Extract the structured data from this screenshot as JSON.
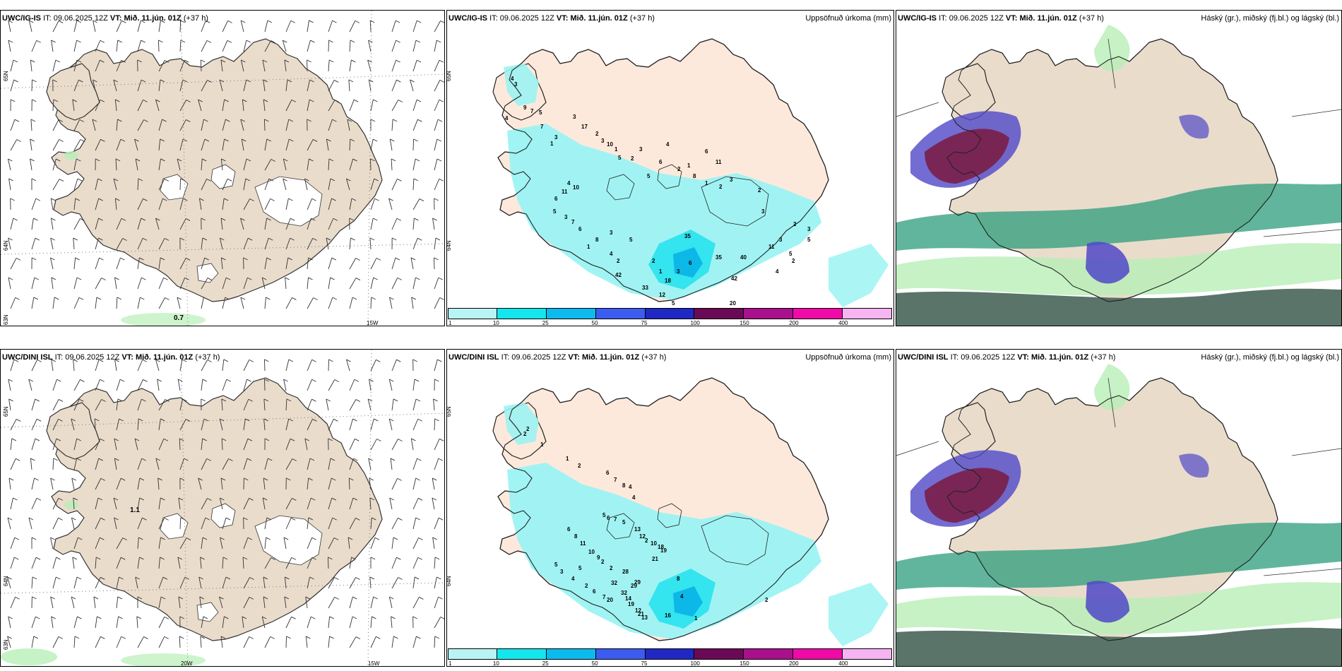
{
  "panels": {
    "top": {
      "wind": {
        "model": "UWC/IG-IS",
        "it_label": "IT:",
        "it": "09.06.2025 12Z",
        "vt_label": "VT:",
        "vt": "Mið. 11.jún. 01Z",
        "lead": "(+37 h)",
        "lat_labels": [
          "65N",
          "64N",
          "63N"
        ],
        "lon_labels": [
          "15W"
        ],
        "max_value": "0.7"
      },
      "precip": {
        "model": "UWC/IG-IS",
        "it_label": "IT:",
        "it": "09.06.2025 12Z",
        "vt_label": "VT:",
        "vt": "Mið. 11.jún. 01Z",
        "lead": "(+37 h)",
        "right_title": "Uppsöfnuð úrkoma (mm)",
        "lat_labels": [
          "65N",
          "64N"
        ],
        "values": [
          "4",
          "3",
          "9",
          "7",
          "5",
          "4",
          "7",
          "3",
          "1",
          "3",
          "17",
          "2",
          "3",
          "1",
          "5",
          "10",
          "2",
          "3",
          "5",
          "4",
          "2",
          "6",
          "1",
          "6",
          "11",
          "8",
          "1",
          "2",
          "3",
          "4",
          "10",
          "11",
          "6",
          "5",
          "3",
          "7",
          "6",
          "8",
          "3",
          "5",
          "2",
          "1",
          "4",
          "2",
          "6",
          "1",
          "3",
          "18",
          "35",
          "35",
          "42",
          "33",
          "12",
          "5",
          "20",
          "17",
          "42",
          "40",
          "2",
          "3",
          "11",
          "3",
          "2",
          "3",
          "5",
          "2",
          "4",
          "5"
        ]
      },
      "cloud": {
        "model": "UWC/IG-IS",
        "it_label": "IT:",
        "it": "09.06.2025 12Z",
        "vt_label": "VT:",
        "vt": "Mið. 11.jún. 01Z",
        "lead": "(+37 h)",
        "right_title": "Háský (gr.), miðský (fj.bl.) og lágský (bl.)"
      }
    },
    "bottom": {
      "wind": {
        "model": "UWC/DINI ISL",
        "it_label": "IT:",
        "it": "09.06.2025 12Z",
        "vt_label": "VT:",
        "vt": "Mið. 11.jún. 01Z",
        "lead": "(+37 h)",
        "lat_labels": [
          "65N",
          "64N",
          "63N"
        ],
        "lon_labels": [
          "20W",
          "15W"
        ],
        "max_value": "1.1"
      },
      "precip": {
        "model": "UWC/DINI ISL",
        "it_label": "IT:",
        "it": "09.06.2025 12Z",
        "vt_label": "VT:",
        "vt": "Mið. 11.jún. 01Z",
        "lead": "(+37 h)",
        "right_title": "Uppsöfnuð úrkoma (mm)",
        "lat_labels": [
          "65N",
          "64N"
        ],
        "values": [
          "2",
          "2",
          "1",
          "1",
          "2",
          "6",
          "7",
          "8",
          "4",
          "4",
          "5",
          "6",
          "7",
          "5",
          "13",
          "12",
          "2",
          "10",
          "18",
          "19",
          "21",
          "28",
          "32",
          "29",
          "32",
          "14",
          "19",
          "12",
          "21",
          "13",
          "16",
          "20",
          "29",
          "6",
          "8",
          "11",
          "10",
          "9",
          "2",
          "2",
          "5",
          "5",
          "3",
          "4",
          "2",
          "6",
          "7",
          "8",
          "4",
          "1",
          "2"
        ]
      },
      "cloud": {
        "model": "UWC/DINI ISL",
        "it_label": "IT:",
        "it": "09.06.2025 12Z",
        "vt_label": "VT:",
        "vt": "Mið. 11.jún. 01Z",
        "lead": "(+37 h)",
        "right_title": "Háský (gr.), miðský (fj.bl.) og lágský (bl.)"
      }
    }
  },
  "legend": {
    "ticks": [
      "1",
      "10",
      "25",
      "50",
      "75",
      "100",
      "150",
      "200",
      "400"
    ],
    "colors": [
      "#b8f4f4",
      "#14e6ee",
      "#0cbaee",
      "#3c5cf0",
      "#2028c4",
      "#6a0a56",
      "#a8108c",
      "#f00aa8",
      "#f6b4f2"
    ]
  },
  "colors": {
    "land": "#eadccb",
    "precip_land": "#fde9dc",
    "cyan": "#9cf3f3",
    "cyan_mid": "#34e4ee",
    "cyan_deep": "#0cb8e8",
    "green_light": "#b8efb8",
    "teal": "#2c9c7c",
    "dark_teal": "#3d5c4f",
    "purple": "#5048c8",
    "maroon": "#7a1a40"
  }
}
